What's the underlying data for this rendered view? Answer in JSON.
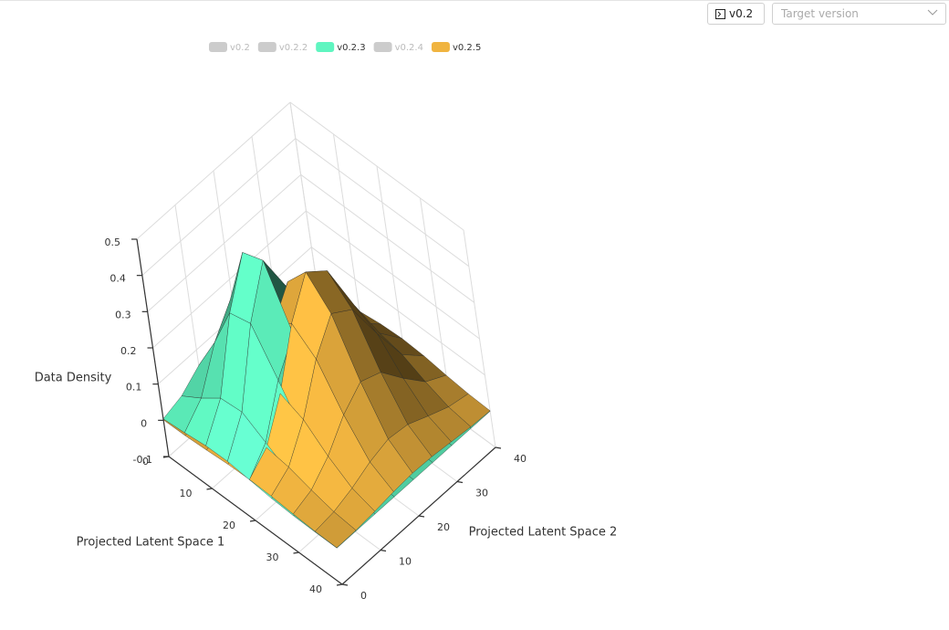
{
  "controls": {
    "version_button": "v0.2",
    "target_version_placeholder": "Target version"
  },
  "chart_data": {
    "type": "surface",
    "xlabel": "Projected Latent Space 1",
    "ylabel": "Projected Latent Space 2",
    "zlabel": "Data Density",
    "x": [
      0,
      5,
      10,
      15,
      20,
      25,
      30,
      35,
      40
    ],
    "y": [
      0,
      5,
      10,
      15,
      20,
      25,
      30,
      35,
      40
    ],
    "xlim": [
      0,
      40
    ],
    "xticks": [
      0,
      10,
      20,
      30,
      40
    ],
    "ylim": [
      0,
      40
    ],
    "yticks": [
      0,
      10,
      20,
      30,
      40
    ],
    "zlim": [
      -0.1,
      0.5
    ],
    "zticks": [
      -0.1,
      0,
      0.1,
      0.2,
      0.3,
      0.4,
      0.5
    ],
    "grid": true,
    "legend_position": "top",
    "series": [
      {
        "name": "v0.2",
        "visible": false
      },
      {
        "name": "v0.2.2",
        "visible": false
      },
      {
        "name": "v0.2.3",
        "color": "#5ff5c0",
        "values": [
          [
            0.004,
            0.02,
            0.057,
            0.08,
            0.057,
            0.02,
            0.004,
            0,
            0
          ],
          [
            0.01,
            0.058,
            0.165,
            0.234,
            0.165,
            0.058,
            0.01,
            0.001,
            0
          ],
          [
            0.018,
            0.102,
            0.29,
            0.41,
            0.29,
            0.102,
            0.018,
            0.002,
            0
          ],
          [
            0.019,
            0.108,
            0.305,
            0.432,
            0.305,
            0.108,
            0.019,
            0.002,
            0
          ],
          [
            0.012,
            0.068,
            0.193,
            0.273,
            0.193,
            0.068,
            0.012,
            0.001,
            0
          ],
          [
            0.005,
            0.026,
            0.074,
            0.104,
            0.074,
            0.026,
            0.005,
            0,
            0
          ],
          [
            0.001,
            0.006,
            0.016,
            0.023,
            0.016,
            0.006,
            0.001,
            0,
            0
          ],
          [
            0,
            0.001,
            0.002,
            0.003,
            0.002,
            0.001,
            0,
            0,
            0
          ],
          [
            0,
            0,
            0,
            0,
            0,
            0,
            0,
            0,
            0
          ]
        ]
      },
      {
        "name": "v0.2.4",
        "visible": false
      },
      {
        "name": "v0.2.5",
        "color": "#f0b440",
        "values": [
          [
            0.001,
            0.002,
            0.007,
            0.014,
            0.018,
            0.016,
            0.01,
            0.004,
            0.001
          ],
          [
            0.002,
            0.009,
            0.027,
            0.052,
            0.068,
            0.061,
            0.037,
            0.015,
            0.004
          ],
          [
            0.006,
            0.025,
            0.071,
            0.138,
            0.182,
            0.161,
            0.097,
            0.04,
            0.011
          ],
          [
            0.011,
            0.044,
            0.128,
            0.248,
            0.326,
            0.29,
            0.175,
            0.071,
            0.02
          ],
          [
            0.013,
            0.054,
            0.156,
            0.302,
            0.397,
            0.353,
            0.212,
            0.086,
            0.024
          ],
          [
            0.011,
            0.044,
            0.128,
            0.248,
            0.326,
            0.29,
            0.175,
            0.071,
            0.02
          ],
          [
            0.006,
            0.025,
            0.071,
            0.138,
            0.182,
            0.161,
            0.097,
            0.04,
            0.011
          ],
          [
            0.002,
            0.009,
            0.027,
            0.052,
            0.068,
            0.061,
            0.037,
            0.015,
            0.004
          ],
          [
            0.001,
            0.002,
            0.007,
            0.014,
            0.018,
            0.016,
            0.01,
            0.004,
            0.001
          ]
        ]
      }
    ]
  }
}
